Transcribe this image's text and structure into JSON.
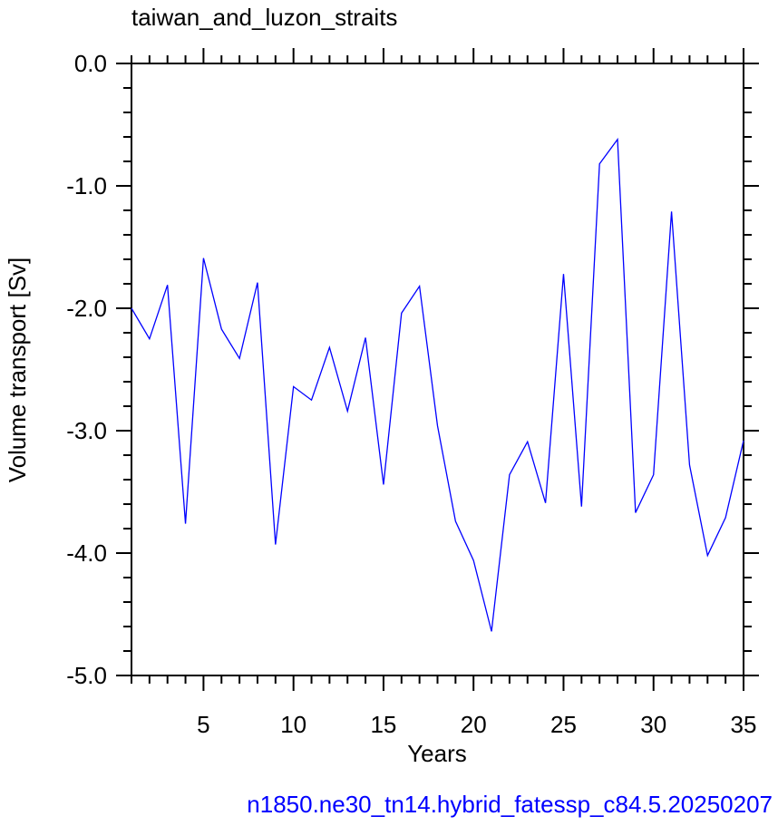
{
  "chart_data": {
    "type": "line",
    "title": "taiwan_and_luzon_straits",
    "subtitle": "n1850.ne30_tn14.hybrid_fatessp_c84.5.20250207",
    "subtitle_color": "#0000ff",
    "x_label": "Years",
    "y_label": "Volume transport [Sv]",
    "x": [
      1,
      2,
      3,
      4,
      5,
      6,
      7,
      8,
      9,
      10,
      11,
      12,
      13,
      14,
      15,
      16,
      17,
      18,
      19,
      20,
      21,
      22,
      23,
      24,
      25,
      26,
      27,
      28,
      29,
      30,
      31,
      32,
      33,
      34,
      35
    ],
    "series": [
      {
        "color": "#0000ff",
        "values": [
          -2.0,
          -2.25,
          -1.81,
          -3.76,
          -1.59,
          -2.17,
          -2.41,
          -1.79,
          -3.93,
          -2.64,
          -2.75,
          -2.32,
          -2.84,
          -2.24,
          -3.44,
          -2.04,
          -1.82,
          -2.96,
          -3.74,
          -4.06,
          -4.64,
          -3.36,
          -3.09,
          -3.59,
          -1.72,
          -3.62,
          -0.82,
          -0.62,
          -3.67,
          -3.36,
          -1.21,
          -3.28,
          -4.02,
          -3.71,
          -3.08
        ]
      }
    ],
    "xlim": [
      1,
      35
    ],
    "xticks": [
      5,
      10,
      15,
      20,
      25,
      30,
      35
    ],
    "xminorticks": [
      1,
      2,
      3,
      4,
      6,
      7,
      8,
      9,
      11,
      12,
      13,
      14,
      16,
      17,
      18,
      19,
      21,
      22,
      23,
      24,
      26,
      27,
      28,
      29,
      31,
      32,
      33,
      34
    ],
    "ylim": [
      -5,
      0
    ],
    "yticks": [
      {
        "value": -5,
        "label": "-5.0"
      },
      {
        "value": -4,
        "label": "-4.0"
      },
      {
        "value": -3,
        "label": "-3.0"
      },
      {
        "value": -2,
        "label": "-2.0"
      },
      {
        "value": -1,
        "label": "-1.0"
      },
      {
        "value": 0,
        "label": "0.0"
      }
    ],
    "yminorticks": [
      -4.8,
      -4.6,
      -4.4,
      -4.2,
      -3.8,
      -3.6,
      -3.4,
      -3.2,
      -2.8,
      -2.6,
      -2.4,
      -2.2,
      -1.8,
      -1.6,
      -1.4,
      -1.2,
      -0.8,
      -0.6,
      -0.4,
      -0.2
    ]
  }
}
